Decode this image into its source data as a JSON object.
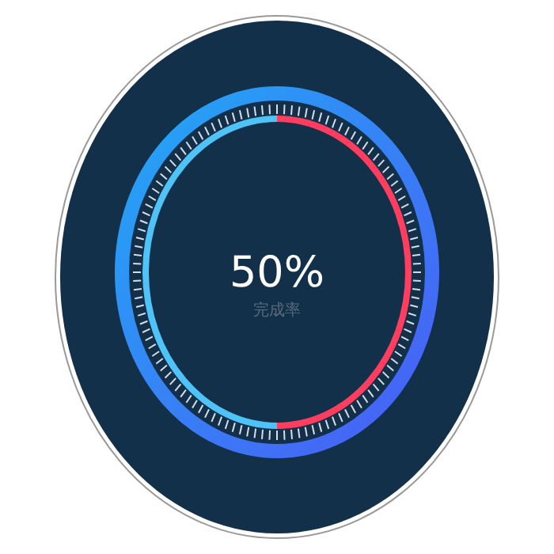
{
  "chart_data": {
    "type": "donut",
    "title": "50%",
    "subtitle": "完成率",
    "categories": [
      null,
      null
    ],
    "values": [
      50,
      50
    ],
    "colors": [
      "#ff3d5f",
      "#4fc3f7"
    ]
  }
}
